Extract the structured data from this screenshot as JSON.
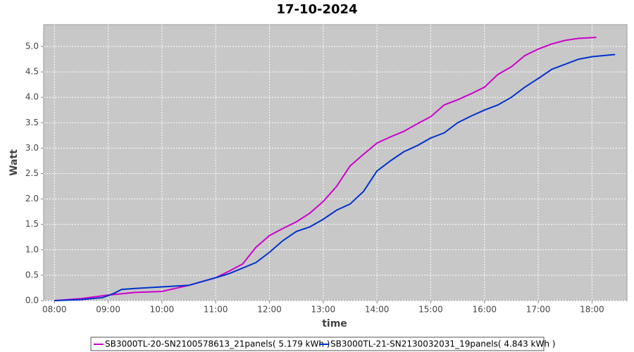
{
  "chart_data": {
    "type": "line",
    "title": "17-10-2024",
    "x_label": "time",
    "y_label": "Watt",
    "xlim": [
      7.8,
      18.65
    ],
    "ylim": [
      0,
      5.43
    ],
    "xticks": [
      {
        "value": 8,
        "label": "08:00"
      },
      {
        "value": 9,
        "label": "09:00"
      },
      {
        "value": 10,
        "label": "10:00"
      },
      {
        "value": 11,
        "label": "11:00"
      },
      {
        "value": 12,
        "label": "12:00"
      },
      {
        "value": 13,
        "label": "13:00"
      },
      {
        "value": 14,
        "label": "14:00"
      },
      {
        "value": 15,
        "label": "15:00"
      },
      {
        "value": 16,
        "label": "16:00"
      },
      {
        "value": 17,
        "label": "17:00"
      },
      {
        "value": 18,
        "label": "18:00"
      }
    ],
    "yticks": [
      {
        "value": 0,
        "label": "0.0"
      },
      0.5,
      {
        "value": 1,
        "label": "1.0"
      },
      1.5,
      {
        "value": 2,
        "label": "2.0"
      },
      2.5,
      {
        "value": 3,
        "label": "3.0"
      },
      3.5,
      {
        "value": 4,
        "label": "4.0"
      },
      4.5,
      {
        "value": 5,
        "label": "5.0"
      }
    ],
    "grid": true,
    "series": [
      {
        "name": "SB3000TL-20-SN2100578613_21panels( 5.179 kWh )",
        "color": "#cc00cc",
        "x": [
          8.0,
          8.5,
          9.0,
          9.5,
          10.0,
          10.5,
          11.0,
          11.25,
          11.5,
          11.75,
          12.0,
          12.25,
          12.5,
          12.75,
          13.0,
          13.25,
          13.5,
          13.75,
          14.0,
          14.25,
          14.5,
          14.75,
          15.0,
          15.25,
          15.5,
          15.75,
          16.0,
          16.25,
          16.5,
          16.75,
          17.0,
          17.25,
          17.5,
          17.75,
          18.08
        ],
        "values": [
          0.0,
          0.04,
          0.11,
          0.16,
          0.18,
          0.3,
          0.45,
          0.58,
          0.72,
          1.05,
          1.28,
          1.42,
          1.55,
          1.72,
          1.95,
          2.25,
          2.65,
          2.88,
          3.1,
          3.22,
          3.33,
          3.48,
          3.62,
          3.85,
          3.95,
          4.07,
          4.2,
          4.45,
          4.6,
          4.82,
          4.95,
          5.05,
          5.12,
          5.16,
          5.179
        ]
      },
      {
        "name": "SB3000TL-21-SN2130032031_19panels( 4.843 kWh )",
        "color": "#0033cc",
        "x": [
          8.0,
          8.5,
          8.9,
          9.1,
          9.25,
          9.5,
          10.0,
          10.5,
          11.0,
          11.25,
          11.5,
          11.75,
          12.0,
          12.25,
          12.5,
          12.75,
          13.0,
          13.25,
          13.5,
          13.75,
          14.0,
          14.25,
          14.5,
          14.75,
          15.0,
          15.25,
          15.5,
          15.75,
          16.0,
          16.25,
          16.5,
          16.75,
          17.0,
          17.25,
          17.5,
          17.75,
          18.0,
          18.43
        ],
        "values": [
          0.0,
          0.02,
          0.06,
          0.14,
          0.22,
          0.24,
          0.27,
          0.3,
          0.45,
          0.53,
          0.64,
          0.75,
          0.95,
          1.18,
          1.36,
          1.45,
          1.6,
          1.78,
          1.9,
          2.15,
          2.55,
          2.75,
          2.93,
          3.05,
          3.2,
          3.3,
          3.5,
          3.63,
          3.75,
          3.85,
          4.0,
          4.2,
          4.37,
          4.55,
          4.65,
          4.75,
          4.8,
          4.843
        ]
      }
    ]
  }
}
